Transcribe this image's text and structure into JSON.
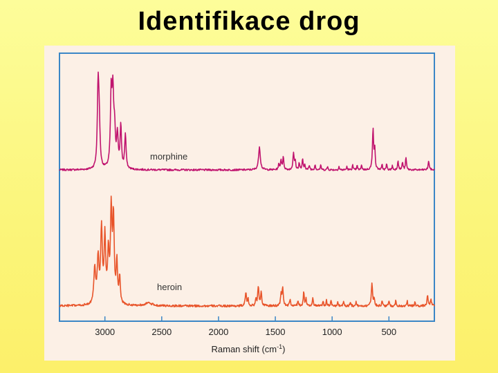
{
  "title": "Identifikace drog",
  "chart_data": {
    "type": "line",
    "title": "Identifikace drog",
    "xlabel": "Raman shift (cm-1)",
    "xlabel_main": "Raman shift (cm",
    "xlabel_sup": "-1",
    "xlabel_tail": ")",
    "x_reversed": true,
    "xlim": [
      3400,
      100
    ],
    "x_ticks": [
      3000,
      2500,
      2000,
      1500,
      1000,
      500
    ],
    "x_tick_labels": [
      "3000",
      "2500",
      "2000",
      "1500",
      "1000",
      "500"
    ],
    "legend": "none",
    "grid": false,
    "series": [
      {
        "name": "morphine",
        "color": "#c0136e",
        "baseline": 0.78,
        "noise": 0.01,
        "peaks": [
          {
            "x": 3060,
            "h": 0.95,
            "w": 8
          },
          {
            "x": 3050,
            "h": 0.45,
            "w": 8
          },
          {
            "x": 2945,
            "h": 0.85,
            "w": 8
          },
          {
            "x": 2930,
            "h": 0.8,
            "w": 8
          },
          {
            "x": 2915,
            "h": 0.4,
            "w": 8
          },
          {
            "x": 2890,
            "h": 0.38,
            "w": 8
          },
          {
            "x": 2860,
            "h": 0.5,
            "w": 7
          },
          {
            "x": 2820,
            "h": 0.4,
            "w": 7
          },
          {
            "x": 1640,
            "h": 0.27,
            "w": 9
          },
          {
            "x": 1470,
            "h": 0.06,
            "w": 5
          },
          {
            "x": 1450,
            "h": 0.11,
            "w": 6
          },
          {
            "x": 1430,
            "h": 0.14,
            "w": 6
          },
          {
            "x": 1340,
            "h": 0.19,
            "w": 6
          },
          {
            "x": 1325,
            "h": 0.1,
            "w": 5
          },
          {
            "x": 1290,
            "h": 0.08,
            "w": 5
          },
          {
            "x": 1260,
            "h": 0.12,
            "w": 5
          },
          {
            "x": 1240,
            "h": 0.06,
            "w": 5
          },
          {
            "x": 1200,
            "h": 0.05,
            "w": 5
          },
          {
            "x": 1150,
            "h": 0.06,
            "w": 5
          },
          {
            "x": 1100,
            "h": 0.05,
            "w": 5
          },
          {
            "x": 1040,
            "h": 0.04,
            "w": 4
          },
          {
            "x": 940,
            "h": 0.04,
            "w": 4
          },
          {
            "x": 870,
            "h": 0.04,
            "w": 4
          },
          {
            "x": 820,
            "h": 0.06,
            "w": 4
          },
          {
            "x": 780,
            "h": 0.05,
            "w": 4
          },
          {
            "x": 740,
            "h": 0.06,
            "w": 4
          },
          {
            "x": 640,
            "h": 0.48,
            "w": 6
          },
          {
            "x": 625,
            "h": 0.22,
            "w": 5
          },
          {
            "x": 560,
            "h": 0.06,
            "w": 4
          },
          {
            "x": 520,
            "h": 0.07,
            "w": 4
          },
          {
            "x": 470,
            "h": 0.05,
            "w": 4
          },
          {
            "x": 420,
            "h": 0.11,
            "w": 5
          },
          {
            "x": 380,
            "h": 0.09,
            "w": 5
          },
          {
            "x": 350,
            "h": 0.14,
            "w": 5
          },
          {
            "x": 150,
            "h": 0.1,
            "w": 6
          }
        ]
      },
      {
        "name": "heroin",
        "color": "#e8542a",
        "baseline": 0.79,
        "noise": 0.012,
        "peaks": [
          {
            "x": 3090,
            "h": 0.4,
            "w": 9
          },
          {
            "x": 3060,
            "h": 0.5,
            "w": 9
          },
          {
            "x": 3030,
            "h": 0.82,
            "w": 9
          },
          {
            "x": 3000,
            "h": 0.72,
            "w": 8
          },
          {
            "x": 2970,
            "h": 0.55,
            "w": 8
          },
          {
            "x": 2945,
            "h": 1.0,
            "w": 8
          },
          {
            "x": 2925,
            "h": 0.92,
            "w": 8
          },
          {
            "x": 2895,
            "h": 0.45,
            "w": 7
          },
          {
            "x": 2870,
            "h": 0.3,
            "w": 7
          },
          {
            "x": 2620,
            "h": 0.03,
            "w": 40
          },
          {
            "x": 1760,
            "h": 0.15,
            "w": 6
          },
          {
            "x": 1740,
            "h": 0.08,
            "w": 5
          },
          {
            "x": 1670,
            "h": 0.07,
            "w": 5
          },
          {
            "x": 1650,
            "h": 0.22,
            "w": 6
          },
          {
            "x": 1625,
            "h": 0.15,
            "w": 6
          },
          {
            "x": 1450,
            "h": 0.12,
            "w": 6
          },
          {
            "x": 1435,
            "h": 0.2,
            "w": 6
          },
          {
            "x": 1370,
            "h": 0.07,
            "w": 5
          },
          {
            "x": 1300,
            "h": 0.06,
            "w": 5
          },
          {
            "x": 1250,
            "h": 0.16,
            "w": 5
          },
          {
            "x": 1230,
            "h": 0.08,
            "w": 5
          },
          {
            "x": 1170,
            "h": 0.09,
            "w": 5
          },
          {
            "x": 1080,
            "h": 0.06,
            "w": 4
          },
          {
            "x": 1050,
            "h": 0.06,
            "w": 4
          },
          {
            "x": 1010,
            "h": 0.07,
            "w": 4
          },
          {
            "x": 950,
            "h": 0.05,
            "w": 4
          },
          {
            "x": 900,
            "h": 0.06,
            "w": 4
          },
          {
            "x": 840,
            "h": 0.05,
            "w": 4
          },
          {
            "x": 790,
            "h": 0.05,
            "w": 4
          },
          {
            "x": 650,
            "h": 0.26,
            "w": 6
          },
          {
            "x": 630,
            "h": 0.09,
            "w": 5
          },
          {
            "x": 560,
            "h": 0.06,
            "w": 4
          },
          {
            "x": 500,
            "h": 0.06,
            "w": 4
          },
          {
            "x": 440,
            "h": 0.06,
            "w": 4
          },
          {
            "x": 340,
            "h": 0.06,
            "w": 4
          },
          {
            "x": 270,
            "h": 0.05,
            "w": 4
          },
          {
            "x": 160,
            "h": 0.11,
            "w": 6
          },
          {
            "x": 130,
            "h": 0.08,
            "w": 5
          }
        ]
      }
    ]
  }
}
